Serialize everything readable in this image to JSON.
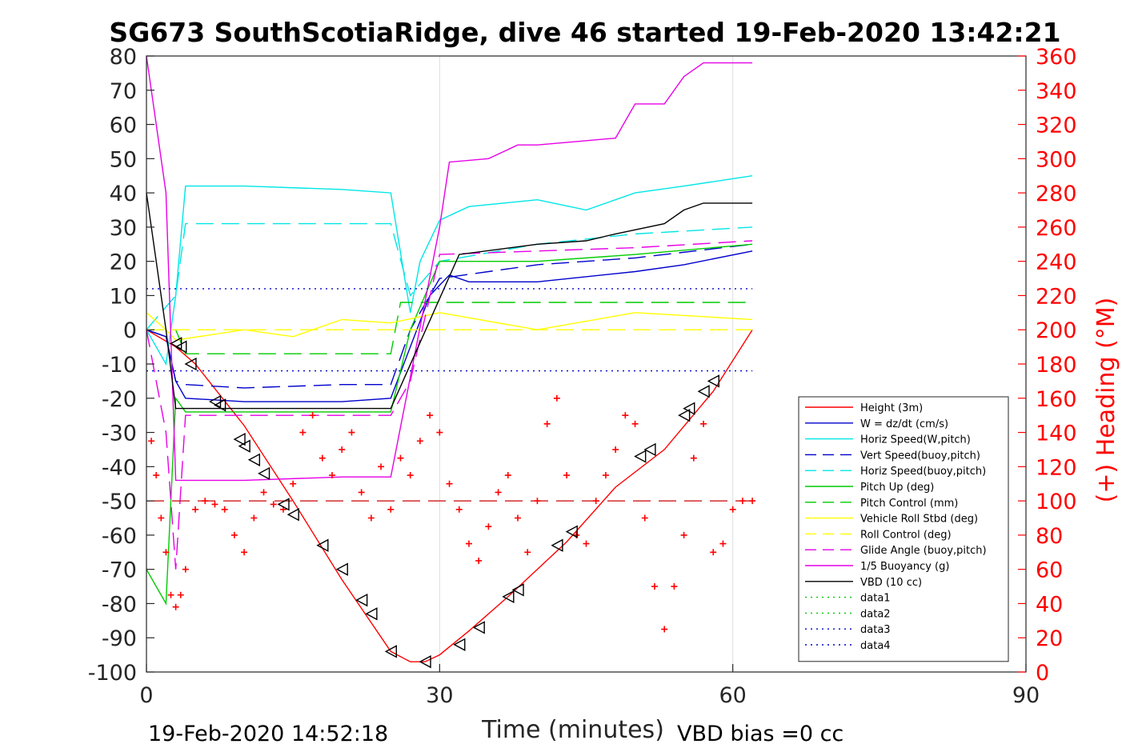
{
  "chart_data": {
    "type": "line",
    "title": "SG673 SouthScotiaRidge, dive 46 started 19-Feb-2020 13:42:21",
    "xlabel": "Time (minutes)",
    "ylabel_right": "(+) Heading (°M)",
    "xlim": [
      0,
      90
    ],
    "ylim_left": [
      -100,
      80
    ],
    "ylim_right": [
      0,
      360
    ],
    "xticks": [
      "0",
      "30",
      "60",
      "90"
    ],
    "yticks_left": [
      "80",
      "70",
      "60",
      "50",
      "40",
      "30",
      "20",
      "10",
      "0",
      "-10",
      "-20",
      "-30",
      "-40",
      "-50",
      "-60",
      "-70",
      "-80",
      "-90",
      "-100"
    ],
    "yticks_right": [
      "360",
      "340",
      "320",
      "300",
      "280",
      "260",
      "240",
      "220",
      "200",
      "180",
      "160",
      "140",
      "120",
      "100",
      "80",
      "60",
      "40",
      "20",
      "0"
    ],
    "footer_left": "19-Feb-2020 14:52:18",
    "footer_right": "VBD bias =0 cc",
    "grid_x": true,
    "legend_position": "lower-right",
    "series": [
      {
        "name": "Height (3m)",
        "color": "#ff0000",
        "style": "solid",
        "x": [
          0,
          3,
          5,
          10,
          15,
          20,
          25,
          27,
          28.5,
          30,
          33,
          37,
          43,
          48,
          53,
          58,
          62
        ],
        "y": [
          0,
          -5,
          -10,
          -28,
          -50,
          -73,
          -94,
          -97,
          -97,
          -95,
          -88,
          -78,
          -62,
          -46,
          -35,
          -18,
          0
        ]
      },
      {
        "name": "W = dz/dt (cm/s)",
        "color": "#0000cc",
        "style": "solid",
        "x": [
          0,
          2,
          3,
          4,
          10,
          20,
          25,
          27,
          29,
          31,
          33,
          40,
          50,
          55,
          62
        ],
        "y": [
          0,
          -2,
          -15,
          -20,
          -21,
          -21,
          -20,
          -5,
          10,
          16,
          14,
          14,
          17,
          19,
          23
        ]
      },
      {
        "name": "Horiz Speed(W,pitch)",
        "color": "#00e6e6",
        "style": "solid",
        "x": [
          0,
          2,
          3,
          4,
          10,
          20,
          25,
          27,
          28,
          30,
          33,
          40,
          45,
          50,
          55,
          62
        ],
        "y": [
          0,
          -10,
          10,
          42,
          42,
          41,
          40,
          5,
          20,
          32,
          36,
          38,
          35,
          40,
          42,
          45
        ]
      },
      {
        "name": "Vert Speed(buoy,pitch)",
        "color": "#0000cc",
        "style": "dashed",
        "x": [
          0,
          2,
          3,
          4,
          10,
          20,
          25,
          27,
          30,
          40,
          50,
          62
        ],
        "y": [
          0,
          -2,
          -15,
          -16,
          -17,
          -16,
          -16,
          0,
          15,
          19,
          21,
          25
        ]
      },
      {
        "name": "Horiz Speed(buoy,pitch)",
        "color": "#00e6e6",
        "style": "dashed",
        "x": [
          0,
          3,
          4,
          10,
          20,
          25,
          27,
          30,
          40,
          50,
          62
        ],
        "y": [
          0,
          10,
          31,
          31,
          31,
          31,
          10,
          20,
          25,
          28,
          30
        ]
      },
      {
        "name": "Pitch Up (deg)",
        "color": "#00cc00",
        "style": "solid",
        "x": [
          0,
          1,
          2,
          3,
          4,
          10,
          20,
          25,
          27,
          30,
          40,
          50,
          62
        ],
        "y": [
          -70,
          -75,
          -80,
          -20,
          -24,
          -24,
          -24,
          -24,
          0,
          20,
          20,
          22,
          25
        ]
      },
      {
        "name": "Pitch Control (mm)",
        "color": "#00cc00",
        "style": "dashed",
        "x": [
          0,
          3,
          4,
          25,
          26,
          62
        ],
        "y": [
          0,
          0,
          -7,
          -7,
          8,
          8
        ]
      },
      {
        "name": "Vehicle Roll Stbd (deg)",
        "color": "#ffff00",
        "style": "solid",
        "x": [
          0,
          2,
          3,
          10,
          15,
          20,
          25,
          30,
          40,
          50,
          62
        ],
        "y": [
          5,
          0,
          -3,
          0,
          -2,
          3,
          2,
          5,
          0,
          5,
          3
        ]
      },
      {
        "name": "Roll Control (deg)",
        "color": "#ffff00",
        "style": "dashed",
        "x": [
          0,
          10,
          20,
          25,
          30,
          40,
          50,
          62
        ],
        "y": [
          0,
          0,
          0,
          0,
          0,
          0,
          0,
          0
        ]
      },
      {
        "name": "Glide Angle (buoy,pitch)",
        "color": "#e600e6",
        "style": "dashed",
        "x": [
          0,
          2,
          3,
          4,
          10,
          20,
          25,
          27,
          30,
          40,
          50,
          62
        ],
        "y": [
          0,
          -30,
          -70,
          -25,
          -25,
          -25,
          -25,
          -15,
          22,
          23,
          24,
          26
        ]
      },
      {
        "name": "1/5 Buoyancy (g)",
        "color": "#e600e6",
        "style": "solid",
        "x": [
          0,
          2,
          3,
          10,
          20,
          25,
          30,
          31,
          35,
          38,
          40,
          44,
          48,
          50,
          53,
          55,
          57,
          62
        ],
        "y": [
          80,
          40,
          -44,
          -44,
          -43,
          -43,
          30,
          49,
          50,
          54,
          54,
          55,
          56,
          66,
          66,
          74,
          78,
          78
        ]
      },
      {
        "name": "VBD (10 cc)",
        "color": "#000000",
        "style": "solid",
        "x": [
          0,
          2,
          3,
          10,
          25,
          32,
          40,
          45,
          48,
          53,
          55,
          57,
          62
        ],
        "y": [
          40,
          0,
          -23,
          -23,
          -23,
          22,
          25,
          26,
          28,
          31,
          35,
          37,
          37
        ]
      },
      {
        "name": "data1",
        "color": "#00cc00",
        "style": "dotted",
        "x": [],
        "y": []
      },
      {
        "name": "data2",
        "color": "#00cc00",
        "style": "dotted",
        "x": [],
        "y": []
      },
      {
        "name": "data3",
        "color": "#0000cc",
        "style": "dotted",
        "x": [
          0,
          62
        ],
        "y": [
          12,
          12
        ]
      },
      {
        "name": "data4",
        "color": "#0000cc",
        "style": "dotted",
        "x": [
          0,
          62
        ],
        "y": [
          -12,
          -12
        ]
      }
    ],
    "heading": {
      "axis": "right",
      "color": "#ff0000",
      "marker": "+",
      "x": [
        0.5,
        1,
        1.5,
        2,
        2.5,
        3,
        3.5,
        4,
        5,
        6,
        7,
        8,
        9,
        10,
        11,
        12,
        13,
        14,
        15,
        16,
        17,
        18,
        19,
        20,
        21,
        22,
        23,
        24,
        25,
        26,
        27,
        28,
        29,
        30,
        31,
        32,
        33,
        34,
        35,
        36,
        37,
        38,
        39,
        40,
        41,
        42,
        43,
        44,
        45,
        46,
        47,
        48,
        49,
        50,
        51,
        52,
        53,
        54,
        55,
        56,
        57,
        58,
        59,
        60,
        61,
        62
      ],
      "y": [
        135,
        115,
        90,
        70,
        45,
        38,
        45,
        60,
        95,
        100,
        98,
        95,
        80,
        70,
        90,
        105,
        98,
        95,
        110,
        140,
        150,
        125,
        115,
        130,
        140,
        105,
        90,
        120,
        95,
        125,
        115,
        135,
        150,
        140,
        110,
        95,
        75,
        65,
        85,
        105,
        115,
        90,
        70,
        100,
        145,
        160,
        115,
        80,
        75,
        100,
        115,
        130,
        150,
        145,
        90,
        50,
        25,
        50,
        80,
        125,
        145,
        70,
        75,
        95,
        100,
        100
      ]
    },
    "heading_mean": 100,
    "depth_markers": {
      "x": [
        3,
        3.5,
        4.5,
        7,
        7.5,
        9.5,
        10,
        11,
        12,
        14,
        15,
        18,
        20,
        22,
        23,
        25,
        28.5,
        32,
        34,
        37,
        38,
        42,
        43.5,
        50.5,
        51.5,
        55,
        55.5,
        57,
        58
      ],
      "y": [
        -4,
        -5,
        -10,
        -21,
        -22,
        -32,
        -34,
        -38,
        -42,
        -51,
        -54,
        -63,
        -70,
        -79,
        -83,
        -94,
        -97,
        -92,
        -87,
        -78,
        -76,
        -63,
        -59,
        -37,
        -35,
        -25,
        -23,
        -18,
        -15
      ]
    }
  }
}
